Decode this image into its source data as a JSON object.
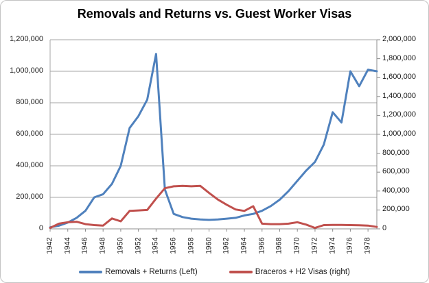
{
  "title": "Removals and Returns vs. Guest Worker Visas",
  "legend": [
    {
      "label": "Removals + Returns (Left)",
      "color": "#4f81bd"
    },
    {
      "label": "Braceros + H2 Visas (right)",
      "color": "#c0504d"
    }
  ],
  "left_axis": {
    "tick_labels": [
      "1,200,000",
      "1,000,000",
      "800,000",
      "600,000",
      "400,000",
      "200,000",
      "0"
    ]
  },
  "right_axis": {
    "tick_labels": [
      "2,000,000",
      "1,800,000",
      "1,600,000",
      "1,400,000",
      "1,200,000",
      "1,000,000",
      "800,000",
      "600,000",
      "400,000",
      "200,000",
      "0"
    ]
  },
  "x_axis": {
    "tick_labels": [
      "1942",
      "1944",
      "1946",
      "1948",
      "1950",
      "1952",
      "1954",
      "1956",
      "1958",
      "1960",
      "1962",
      "1964",
      "1966",
      "1968",
      "1970",
      "1972",
      "1974",
      "1976",
      "1978"
    ]
  },
  "chart_data": {
    "type": "line",
    "title": "Removals and Returns vs. Guest Worker Visas",
    "x": [
      1942,
      1943,
      1944,
      1945,
      1946,
      1947,
      1948,
      1949,
      1950,
      1951,
      1952,
      1953,
      1954,
      1955,
      1956,
      1957,
      1958,
      1959,
      1960,
      1961,
      1962,
      1963,
      1964,
      1965,
      1966,
      1967,
      1968,
      1969,
      1970,
      1971,
      1972,
      1973,
      1974,
      1975,
      1976,
      1977,
      1978,
      1979
    ],
    "series": [
      {
        "name": "Removals + Returns (Left)",
        "axis": "left",
        "color": "#4f81bd",
        "values": [
          10000,
          20000,
          40000,
          70000,
          115000,
          200000,
          220000,
          285000,
          400000,
          640000,
          715000,
          820000,
          1110000,
          250000,
          95000,
          75000,
          65000,
          60000,
          57000,
          60000,
          65000,
          70000,
          85000,
          95000,
          115000,
          145000,
          185000,
          240000,
          305000,
          370000,
          425000,
          535000,
          740000,
          675000,
          1000000,
          905000,
          1010000,
          1000000
        ]
      },
      {
        "name": "Braceros + H2 Visas (right)",
        "axis": "right",
        "color": "#c0504d",
        "values": [
          10000,
          55000,
          70000,
          75000,
          50000,
          40000,
          35000,
          110000,
          80000,
          190000,
          195000,
          200000,
          320000,
          430000,
          450000,
          455000,
          450000,
          455000,
          380000,
          310000,
          255000,
          205000,
          190000,
          240000,
          55000,
          50000,
          50000,
          55000,
          70000,
          45000,
          10000,
          40000,
          42000,
          42000,
          40000,
          38000,
          35000,
          20000
        ]
      }
    ],
    "xlim": [
      1942,
      1979
    ],
    "x_tick_step": 2,
    "ylim_left": [
      0,
      1200000
    ],
    "ylim_right": [
      0,
      2000000
    ],
    "y_tick_step_left": 200000,
    "y_tick_step_right": 200000,
    "grid": "horizontal",
    "legend_position": "bottom",
    "x_label_rotation": -90
  },
  "colors": {
    "gridline": "#a6a6a6",
    "axis_line": "#8c8c8c",
    "text": "#1a1a1a"
  }
}
